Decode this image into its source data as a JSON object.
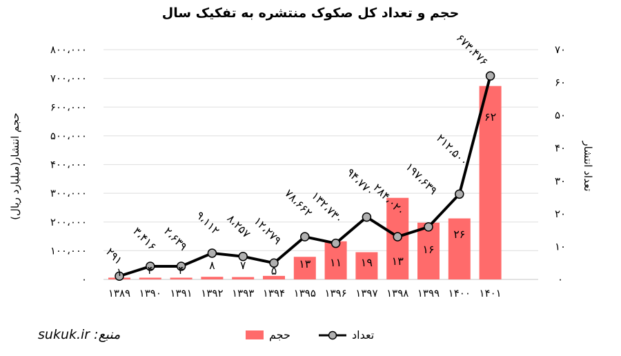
{
  "title": "حجم و تعداد کل صکوک منتشره به تفکیک سال",
  "source": "منبع: sukuk.ir",
  "colors": {
    "bar": "#ff6b6b",
    "line": "#000000",
    "marker_fill": "#b0b0b0",
    "grid": "#e4e4e4"
  },
  "chart_data": {
    "type": "bar+line",
    "title": "حجم و تعداد کل صکوک منتشره به تفکیک سال",
    "categories": [
      "۱۳۸۹",
      "۱۳۹۰",
      "۱۳۹۱",
      "۱۳۹۲",
      "۱۳۹۳",
      "۱۳۹۴",
      "۱۳۹۵",
      "۱۳۹۶",
      "۱۳۹۷",
      "۱۳۹۸",
      "۱۳۹۹",
      "۱۴۰۰",
      "۱۴۰۱"
    ],
    "years": [
      1389,
      1390,
      1391,
      1392,
      1393,
      1394,
      1395,
      1396,
      1397,
      1398,
      1399,
      1400,
      1401
    ],
    "series": [
      {
        "name": "حجم",
        "type": "bar",
        "axis": "left",
        "values": [
          291,
          3416,
          2639,
          9112,
          8257,
          12279,
          78662,
          132730,
          94770,
          284020,
          197639,
          212500,
          673476
        ],
        "labels": [
          "۲۹۱",
          "۳،۴۱۶",
          "۲،۶۳۹",
          "۹،۱۱۲",
          "۸،۲۵۷",
          "۱۲،۲۷۹",
          "۷۸،۶۶۲",
          "۱۳۲،۷۳۰",
          "۹۴،۷۷۰",
          "۲۸۴،۰۲۰",
          "۱۹۷،۶۳۹",
          "۲۱۲،۵۰۰",
          "۶۷۳،۴۷۶"
        ]
      },
      {
        "name": "تعداد",
        "type": "line",
        "axis": "right",
        "values": [
          1,
          4,
          4,
          8,
          7,
          5,
          13,
          11,
          19,
          13,
          16,
          26,
          62
        ],
        "labels": [
          "۱",
          "۴",
          "۴",
          "۸",
          "۷",
          "۵",
          "۱۳",
          "۱۱",
          "۱۹",
          "۱۳",
          "۱۶",
          "۲۶",
          "۶۲"
        ]
      }
    ],
    "ylabel": "حجم انتشار(میلیارد ریال)",
    "y2label": "تعداد انتشار",
    "ylim": [
      0,
      800000
    ],
    "y2lim": [
      0,
      70
    ],
    "yticks": [
      "۰",
      "۱۰۰،۰۰۰",
      "۲۰۰،۰۰۰",
      "۳۰۰،۰۰۰",
      "۴۰۰،۰۰۰",
      "۵۰۰،۰۰۰",
      "۶۰۰،۰۰۰",
      "۷۰۰،۰۰۰",
      "۸۰۰،۰۰۰"
    ],
    "y2ticks": [
      "۰",
      "۱۰",
      "۲۰",
      "۳۰",
      "۴۰",
      "۵۰",
      "۶۰",
      "۷۰"
    ],
    "grid": true,
    "legend": {
      "position": "bottom",
      "entries": [
        "تعداد",
        "حجم"
      ]
    }
  }
}
